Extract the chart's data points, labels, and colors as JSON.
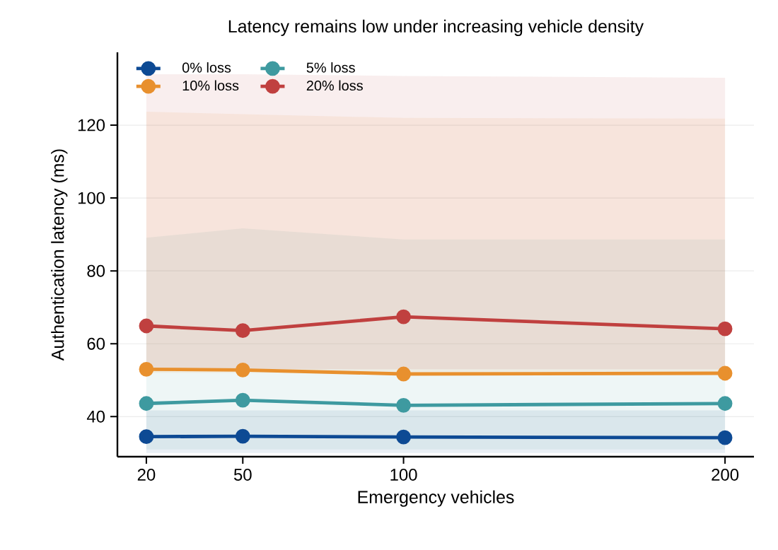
{
  "chart_data": {
    "type": "line",
    "title": "Latency remains low under increasing vehicle density",
    "xlabel": "Emergency vehicles",
    "ylabel": "Authentication latency (ms)",
    "x": [
      20,
      50,
      100,
      200
    ],
    "series": [
      {
        "name": "0% loss",
        "color": "#0d4a94",
        "values": [
          34.5,
          34.6,
          34.4,
          34.2
        ],
        "lower": [
          30,
          30,
          30,
          30
        ],
        "upper": [
          41.7,
          41.7,
          41.7,
          41.7
        ]
      },
      {
        "name": "5% loss",
        "color": "#3e9aa0",
        "values": [
          43.6,
          44.5,
          43.1,
          43.6
        ],
        "lower": [
          31,
          31,
          31,
          31
        ],
        "upper": [
          89.1,
          91.7,
          88.6,
          88.6
        ]
      },
      {
        "name": "10% loss",
        "color": "#e8902e",
        "values": [
          53.0,
          52.8,
          51.7,
          51.9
        ],
        "lower": [
          52,
          52,
          52,
          52
        ],
        "upper": [
          123.7,
          123,
          122,
          121.8
        ]
      },
      {
        "name": "20% loss",
        "color": "#c0403f",
        "values": [
          64.9,
          63.6,
          67.4,
          64.1
        ],
        "lower": [
          53,
          53,
          53,
          53
        ],
        "upper": [
          134,
          134,
          133.5,
          133
        ]
      }
    ],
    "xlim": [
      11,
      209
    ],
    "ylim": [
      29,
      140
    ],
    "xticks": [
      20,
      50,
      100,
      200
    ],
    "yticks": [
      40,
      60,
      80,
      100,
      120
    ],
    "grid": "y",
    "legend": "top left",
    "marker": "circle",
    "line_style": "solid"
  }
}
